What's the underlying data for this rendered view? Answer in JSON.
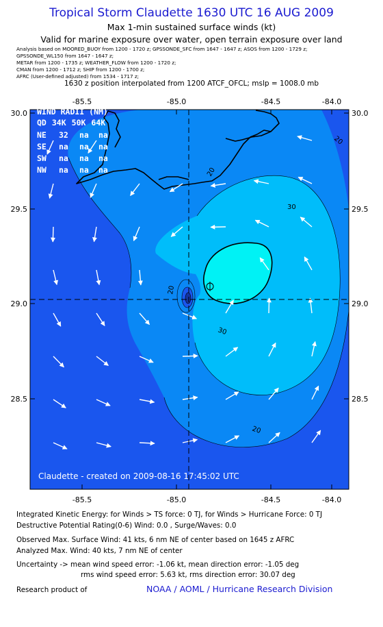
{
  "header": {
    "title": "Tropical Storm Claudette 1630 UTC 16 AUG 2009",
    "subtitle1": "Max 1-min sustained surface winds (kt)",
    "subtitle2": "Valid for marine exposure over water, open terrain exposure over land",
    "analysis_lines": [
      "Analysis based on   MOORED_BUOY from 1200 - 1720 z;  GPSSONDE_SFC from 1647 - 1647 z;  ASOS from 1200 - 1729 z;",
      "GPSSONDE_WL150 from 1647 - 1647 z;",
      "METAR from 1200 - 1735 z;  WEATHER_FLOW from 1200 - 1720 z;",
      "CMAN from 1200 - 1712 z;  SHIP from 1200 - 1700 z;",
      "AFRC  (User-defined adjusted) from 1534 - 1717 z;"
    ],
    "position_note": "1630 z position interpolated from 1200 ATCF_OFCL; mslp = 1008.0 mb"
  },
  "map": {
    "lon_ticks": [
      "-85.5",
      "-85.0",
      "-84.5",
      "-84.0"
    ],
    "lat_ticks": [
      "30.0",
      "29.5",
      "29.0",
      "28.5"
    ],
    "lon_range": [
      -85.75,
      -84.05
    ],
    "lat_range": [
      28.12,
      30.05
    ],
    "center": {
      "lon": -84.92,
      "lat": 29.025
    },
    "contour_labels": [
      "20",
      "20",
      "30",
      "30",
      "20",
      "20"
    ],
    "credit": "Claudette - created on 2009-08-16 17:45:02 UTC",
    "colors": {
      "c10": "#1a56ee",
      "c20": "#0a88f5",
      "c30": "#00bdfa",
      "c40": "#00f2f5",
      "frame": "#000000"
    }
  },
  "wind_radii": {
    "title": "WIND RADII (NM)",
    "header": [
      "QD",
      "34K",
      "50K",
      "64K"
    ],
    "rows": [
      [
        "NE",
        "32",
        "na",
        "na"
      ],
      [
        "SE",
        "na",
        "na",
        "na"
      ],
      [
        "SW",
        "na",
        "na",
        "na"
      ],
      [
        "NW",
        "na",
        "na",
        "na"
      ]
    ]
  },
  "footer": {
    "ike": "Integrated Kinetic Energy:  for Winds > TS force: 0 TJ,  for Winds > Hurricane Force: 0 TJ",
    "dpr": "Destructive Potential Rating(0-6)   Wind: 0.0 , Surge/Waves: 0.0",
    "observed": "Observed Max. Surface Wind: 41 kts, 6 nm NE of center based on 1645 z AFRC",
    "analyzed": "Analyzed Max. Wind: 40 kts, 7 nm NE of center",
    "uncertainty1": "Uncertainty -> mean wind speed error:  -1.06 kt,   mean direction error:  -1.05 deg",
    "uncertainty2": "rms wind speed error: 5.63 kt,   rms direction error: 30.07 deg",
    "research": "Research product of",
    "credit": "NOAA / AOML / Hurricane Research Division"
  }
}
